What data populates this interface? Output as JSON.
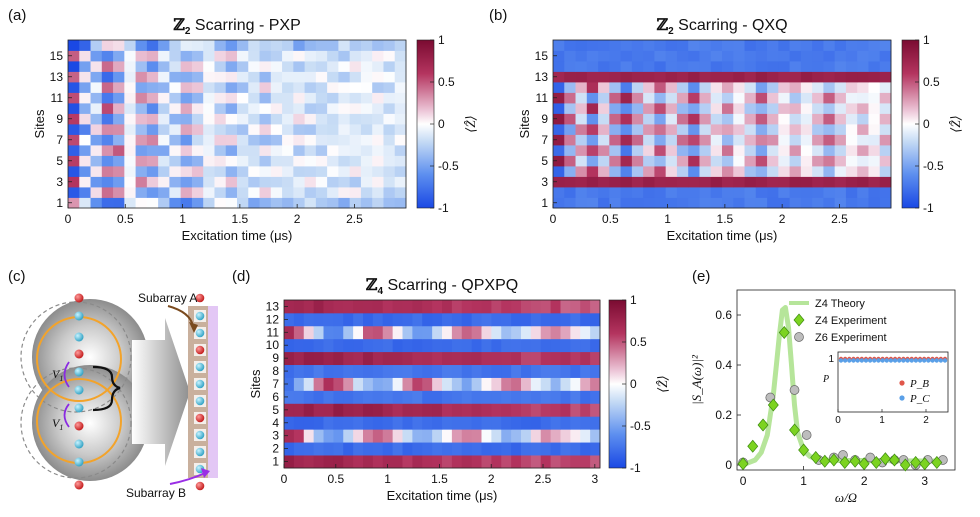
{
  "panel_labels": {
    "a": "(a)",
    "b": "(b)",
    "c": "(c)",
    "d": "(d)",
    "e": "(e)"
  },
  "colors": {
    "neg": "#1c4fe6",
    "mid": "#ffffff",
    "pos": "#7a0b31",
    "green": "#7cd321",
    "green_line": "#b6e59a",
    "grey": "#bdbdbd",
    "purple": "#9a2ee6",
    "brown": "#7a4a1e"
  },
  "chart_data": [
    {
      "id": "a",
      "type": "heatmap",
      "title_sym": "ℤ",
      "title_sub": "2",
      "title_text": " Scarring - PXP",
      "xlabel": "Excitation time (μs)",
      "ylabel": "Sites",
      "cbar_label": "⟨Ẑ⟩",
      "xlim": [
        0,
        2.95
      ],
      "xticks": [
        0,
        0.5,
        1,
        1.5,
        2,
        2.5
      ],
      "xtick_labels": [
        "0",
        "0.5",
        "1",
        "1.5",
        "2",
        "2.5"
      ],
      "rows": 16,
      "cols": 30,
      "ytick_labels": [
        "1",
        "3",
        "5",
        "7",
        "9",
        "11",
        "13",
        "15"
      ],
      "ytick_rows": [
        1,
        3,
        5,
        7,
        9,
        11,
        13,
        15
      ],
      "clim": [
        -1,
        1
      ],
      "cbar_ticks": [
        "1",
        "0.5",
        "0",
        "-0.5",
        "-1"
      ],
      "pattern": "pxp",
      "amp_start": 0.85,
      "decay": 0.75,
      "offset": -0.12
    },
    {
      "id": "b",
      "type": "heatmap",
      "title_sym": "ℤ",
      "title_sub": "2",
      "title_text": " Scarring - QXQ",
      "xlabel": "Excitation time (μs)",
      "ylabel": "Sites",
      "cbar_label": "⟨Ẑ⟩",
      "xlim": [
        0,
        2.95
      ],
      "xticks": [
        0,
        0.5,
        1,
        1.5,
        2,
        2.5
      ],
      "xtick_labels": [
        "0",
        "0.5",
        "1",
        "1.5",
        "2",
        "2.5"
      ],
      "rows": 16,
      "cols": 30,
      "ytick_labels": [
        "1",
        "3",
        "5",
        "7",
        "9",
        "11",
        "13",
        "15"
      ],
      "ytick_rows": [
        1,
        3,
        5,
        7,
        9,
        11,
        13,
        15
      ],
      "clim": [
        -1,
        1
      ],
      "cbar_ticks": [
        "1",
        "0.5",
        "0",
        "-0.5",
        "-1"
      ],
      "pattern": "qxq",
      "amp_start": 0.9,
      "decay": 0.15,
      "offset": 0
    },
    {
      "id": "d",
      "type": "heatmap",
      "title_sym": "ℤ",
      "title_sub": "4",
      "title_text": " Scarring - QPXPQ",
      "xlabel": "Excitation time (μs)",
      "ylabel": "Sites",
      "cbar_label": "⟨Ẑ⟩",
      "xlim": [
        0,
        3.05
      ],
      "xticks": [
        0,
        0.5,
        1,
        1.5,
        2,
        2.5,
        3
      ],
      "xtick_labels": [
        "0",
        "0.5",
        "1",
        "1.5",
        "2",
        "2.5",
        "3"
      ],
      "rows": 13,
      "cols": 32,
      "ytick_labels": [
        "1",
        "2",
        "3",
        "4",
        "5",
        "6",
        "7",
        "8",
        "9",
        "10",
        "11",
        "12",
        "13"
      ],
      "ytick_rows": [
        1,
        2,
        3,
        4,
        5,
        6,
        7,
        8,
        9,
        10,
        11,
        12,
        13
      ],
      "clim": [
        -1,
        1
      ],
      "cbar_ticks": [
        "1",
        "0.5",
        "0",
        "-0.5",
        "-1"
      ],
      "pattern": "qpxpq",
      "amp_start": 0.85,
      "decay": 0.2,
      "offset": 0
    },
    {
      "id": "e",
      "type": "line+scatter",
      "xlabel": "ω/Ω",
      "ylabel": "|S_A(ω)|²",
      "xlim": [
        -0.1,
        3.5
      ],
      "ylim": [
        -0.02,
        0.7
      ],
      "xticks": [
        0,
        1,
        2,
        3
      ],
      "xtick_labels": [
        "0",
        "1",
        "2",
        "3"
      ],
      "yticks": [
        0,
        0.2,
        0.4,
        0.6
      ],
      "ytick_labels": [
        "0",
        "0.2",
        "0.4",
        "0.6"
      ],
      "legend": [
        "Z4 Theory",
        "Z4 Experiment",
        "Z6 Experiment"
      ],
      "series": [
        {
          "name": "Z4 Theory",
          "type": "line",
          "x": [
            0,
            0.1,
            0.2,
            0.3,
            0.4,
            0.5,
            0.55,
            0.6,
            0.65,
            0.7,
            0.75,
            0.8,
            0.85,
            0.9,
            1.0,
            1.1,
            1.2,
            1.4,
            1.6,
            2.0,
            2.5,
            3.0,
            3.3
          ],
          "y": [
            0.0,
            0.01,
            0.02,
            0.05,
            0.12,
            0.28,
            0.4,
            0.52,
            0.62,
            0.63,
            0.55,
            0.4,
            0.24,
            0.13,
            0.06,
            0.035,
            0.025,
            0.02,
            0.018,
            0.018,
            0.017,
            0.016,
            0.016
          ]
        },
        {
          "name": "Z4 Experiment",
          "type": "scatter",
          "x": [
            0.0,
            0.16,
            0.33,
            0.5,
            0.68,
            0.85,
            1.0,
            1.2,
            1.35,
            1.5,
            1.68,
            1.85,
            2.0,
            2.2,
            2.35,
            2.5,
            2.68,
            2.85,
            3.0,
            3.2
          ],
          "y": [
            0.005,
            0.075,
            0.16,
            0.24,
            0.53,
            0.14,
            0.06,
            0.03,
            0.015,
            0.02,
            0.01,
            0.015,
            0.005,
            0.01,
            0.025,
            0.02,
            0.0,
            0.01,
            0.005,
            0.01
          ]
        },
        {
          "name": "Z6 Experiment",
          "type": "scatter",
          "x": [
            0.0,
            0.45,
            0.85,
            1.05,
            1.25,
            1.5,
            1.65,
            1.85,
            2.1,
            2.3,
            2.5,
            2.65,
            2.85,
            3.05,
            3.3
          ],
          "y": [
            0.01,
            0.27,
            0.3,
            0.12,
            0.02,
            0.03,
            0.04,
            0.02,
            0.03,
            0.01,
            0.02,
            0.02,
            0.0,
            0.02,
            0.02
          ]
        }
      ],
      "inset": {
        "ylabel": "P",
        "xlim": [
          0,
          2.5
        ],
        "xticks": [
          0,
          1,
          2
        ],
        "xtick_labels": [
          "0",
          "1",
          "2"
        ],
        "ytick_label": "1",
        "legend": [
          "P_B",
          "P_C"
        ],
        "series": [
          {
            "name": "P_B",
            "value": 0.98
          },
          {
            "name": "P_C",
            "value": 0.96
          }
        ]
      }
    }
  ],
  "diagram_c": {
    "subarray_a": "Subarray A",
    "subarray_b": "Subarray B",
    "v_label": "V",
    "v_sub": "1"
  }
}
